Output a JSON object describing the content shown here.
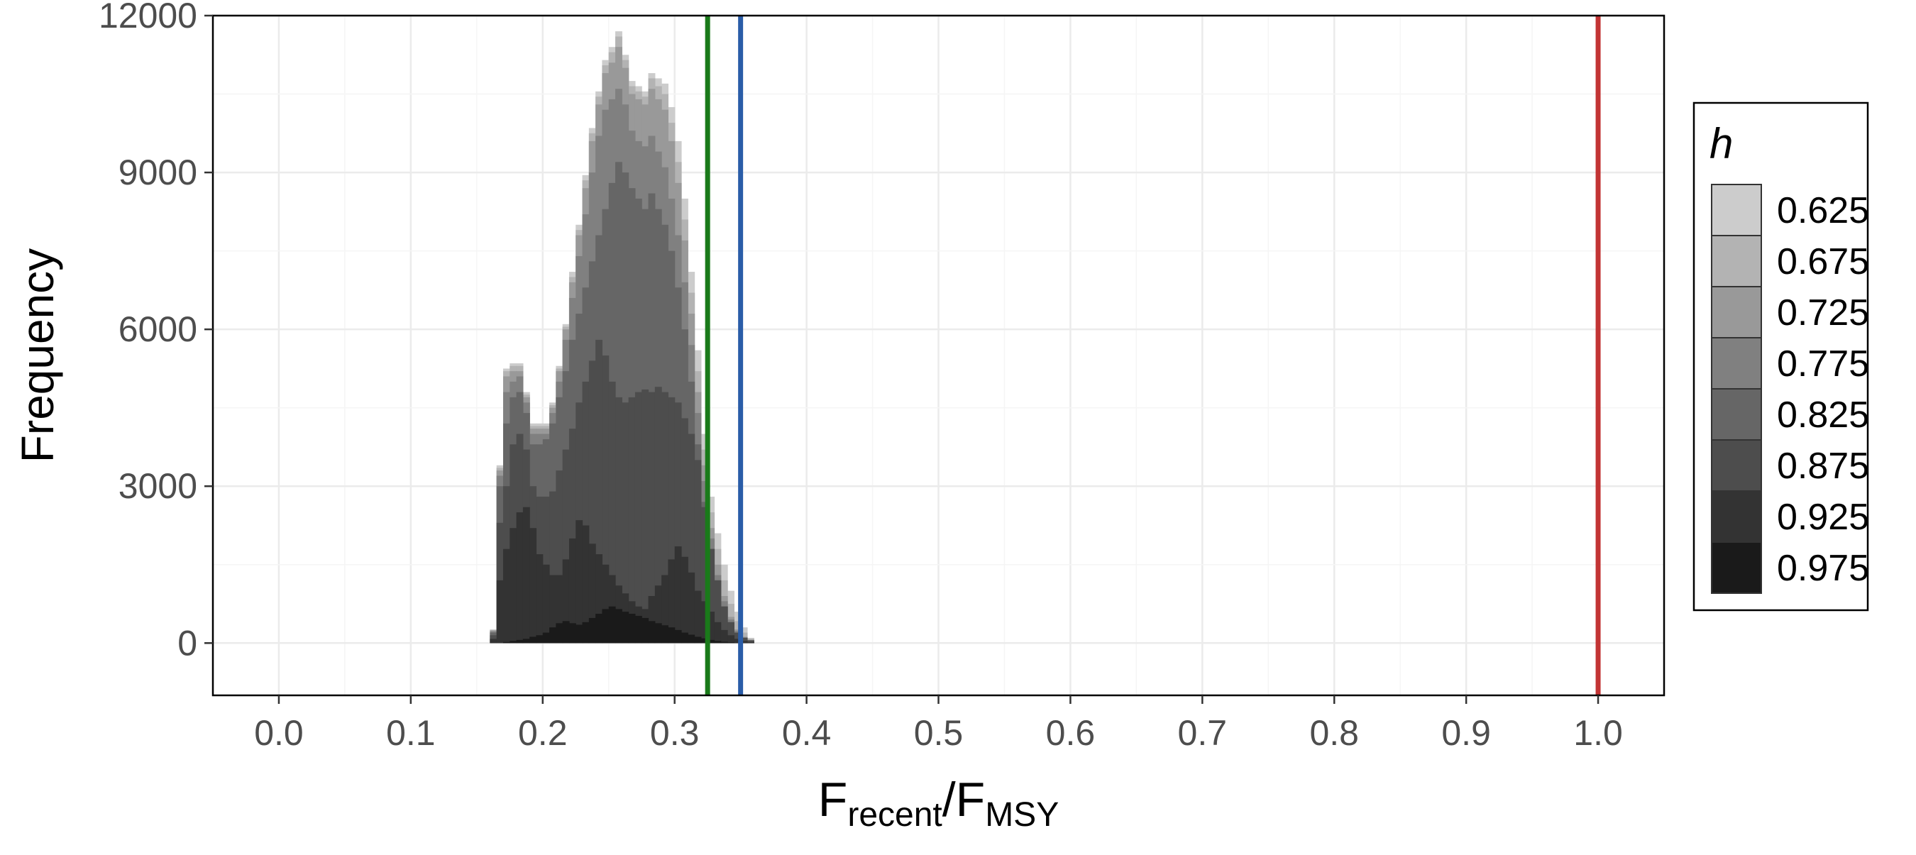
{
  "chart_data": {
    "type": "histogram",
    "stacked": true,
    "xlabel": {
      "base": "F",
      "num_sub": "recent",
      "slash": "/",
      "den_base": "F",
      "den_sub": "MSY"
    },
    "ylabel": "Frequency",
    "xlim": [
      -0.05,
      1.05
    ],
    "ylim": [
      -1000,
      12000
    ],
    "x_ticks": [
      0.0,
      0.1,
      0.2,
      0.3,
      0.4,
      0.5,
      0.6,
      0.7,
      0.8,
      0.9,
      1.0
    ],
    "x_tick_labels": [
      "0.0",
      "0.1",
      "0.2",
      "0.3",
      "0.4",
      "0.5",
      "0.6",
      "0.7",
      "0.8",
      "0.9",
      "1.0"
    ],
    "y_ticks": [
      0,
      3000,
      6000,
      9000,
      12000
    ],
    "y_tick_labels": [
      "0",
      "3000",
      "6000",
      "9000",
      "12000"
    ],
    "grid": true,
    "legend": {
      "title": "h",
      "position": "right",
      "entries": [
        "0.625",
        "0.675",
        "0.725",
        "0.775",
        "0.825",
        "0.875",
        "0.925",
        "0.975"
      ]
    },
    "series_colors": [
      "#cccccc",
      "#b3b3b3",
      "#999999",
      "#808080",
      "#666666",
      "#4d4d4d",
      "#333333",
      "#1a1a1a"
    ],
    "bin_width": 0.005,
    "bin_start": 0.16,
    "cumulative_top_heights": {
      "0.975": [
        0,
        0,
        20,
        40,
        60,
        80,
        120,
        150,
        200,
        300,
        380,
        420,
        380,
        350,
        400,
        480,
        560,
        650,
        700,
        650,
        600,
        560,
        520,
        480,
        420,
        380,
        340,
        300,
        250,
        200,
        160,
        120,
        90,
        60,
        40,
        25,
        15,
        8,
        4,
        2
      ],
      "0.925": [
        80,
        1200,
        1800,
        2200,
        2500,
        2600,
        2200,
        1700,
        1500,
        1300,
        1300,
        1600,
        2000,
        2350,
        2250,
        1900,
        1700,
        1500,
        1300,
        1100,
        950,
        800,
        700,
        650,
        900,
        1100,
        1300,
        1600,
        1850,
        1650,
        1350,
        1000,
        800,
        600,
        400,
        250,
        150,
        80,
        40,
        20
      ],
      "0.875": [
        150,
        2300,
        3000,
        3800,
        4000,
        3700,
        3000,
        2800,
        2800,
        2900,
        3300,
        3700,
        4100,
        4600,
        5000,
        5400,
        5800,
        5500,
        5000,
        4700,
        4600,
        4700,
        4800,
        4850,
        4800,
        4900,
        4800,
        4700,
        4600,
        4300,
        4000,
        3500,
        2600,
        1800,
        1200,
        700,
        400,
        200,
        100,
        50
      ],
      "0.825": [
        200,
        3000,
        4200,
        4700,
        4800,
        4400,
        3800,
        3800,
        3900,
        4200,
        4700,
        5200,
        5800,
        6300,
        6800,
        7300,
        7800,
        8300,
        8800,
        9200,
        9000,
        8700,
        8500,
        8300,
        8600,
        8300,
        8000,
        7500,
        6800,
        6000,
        5000,
        3800,
        2700,
        1800,
        1200,
        700,
        400,
        200,
        100,
        50
      ],
      "0.775": [
        220,
        3200,
        4800,
        5000,
        5100,
        4600,
        4000,
        4000,
        4000,
        4400,
        5000,
        5800,
        6600,
        7400,
        8200,
        9000,
        9700,
        10200,
        10400,
        10600,
        10300,
        9800,
        9600,
        9500,
        9700,
        9400,
        9100,
        8500,
        7800,
        6900,
        5700,
        4400,
        3100,
        2000,
        1300,
        800,
        450,
        230,
        110,
        60
      ],
      "0.725": [
        240,
        3300,
        5100,
        5200,
        5200,
        4700,
        4100,
        4100,
        4100,
        4500,
        5200,
        6000,
        6900,
        7800,
        8700,
        9600,
        10300,
        10900,
        11100,
        11400,
        11000,
        10500,
        10400,
        10300,
        10600,
        10400,
        10200,
        9600,
        8800,
        7700,
        6300,
        4800,
        3400,
        2200,
        1500,
        900,
        500,
        260,
        120,
        60
      ],
      "0.675": [
        250,
        3350,
        5200,
        5300,
        5300,
        4750,
        4150,
        4150,
        4150,
        4550,
        5250,
        6050,
        7000,
        7900,
        8850,
        9750,
        10450,
        11050,
        11300,
        11600,
        11150,
        10650,
        10550,
        10450,
        10800,
        10650,
        10500,
        9950,
        9200,
        8100,
        6700,
        5200,
        3700,
        2500,
        1800,
        1200,
        750,
        420,
        200,
        80
      ],
      "0.625": [
        260,
        3400,
        5250,
        5350,
        5350,
        4800,
        4200,
        4200,
        4200,
        4600,
        5300,
        6100,
        7100,
        8000,
        8950,
        9850,
        10550,
        11150,
        11400,
        11700,
        11250,
        10750,
        10650,
        10550,
        10900,
        10800,
        10700,
        10250,
        9600,
        8500,
        7100,
        5600,
        4000,
        2800,
        2100,
        1500,
        1000,
        600,
        300,
        100
      ]
    },
    "reference_lines": [
      {
        "x": 0.325,
        "color": "#1a7a1a"
      },
      {
        "x": 0.35,
        "color": "#2a5da8"
      },
      {
        "x": 1.0,
        "color": "#c23434"
      }
    ]
  }
}
